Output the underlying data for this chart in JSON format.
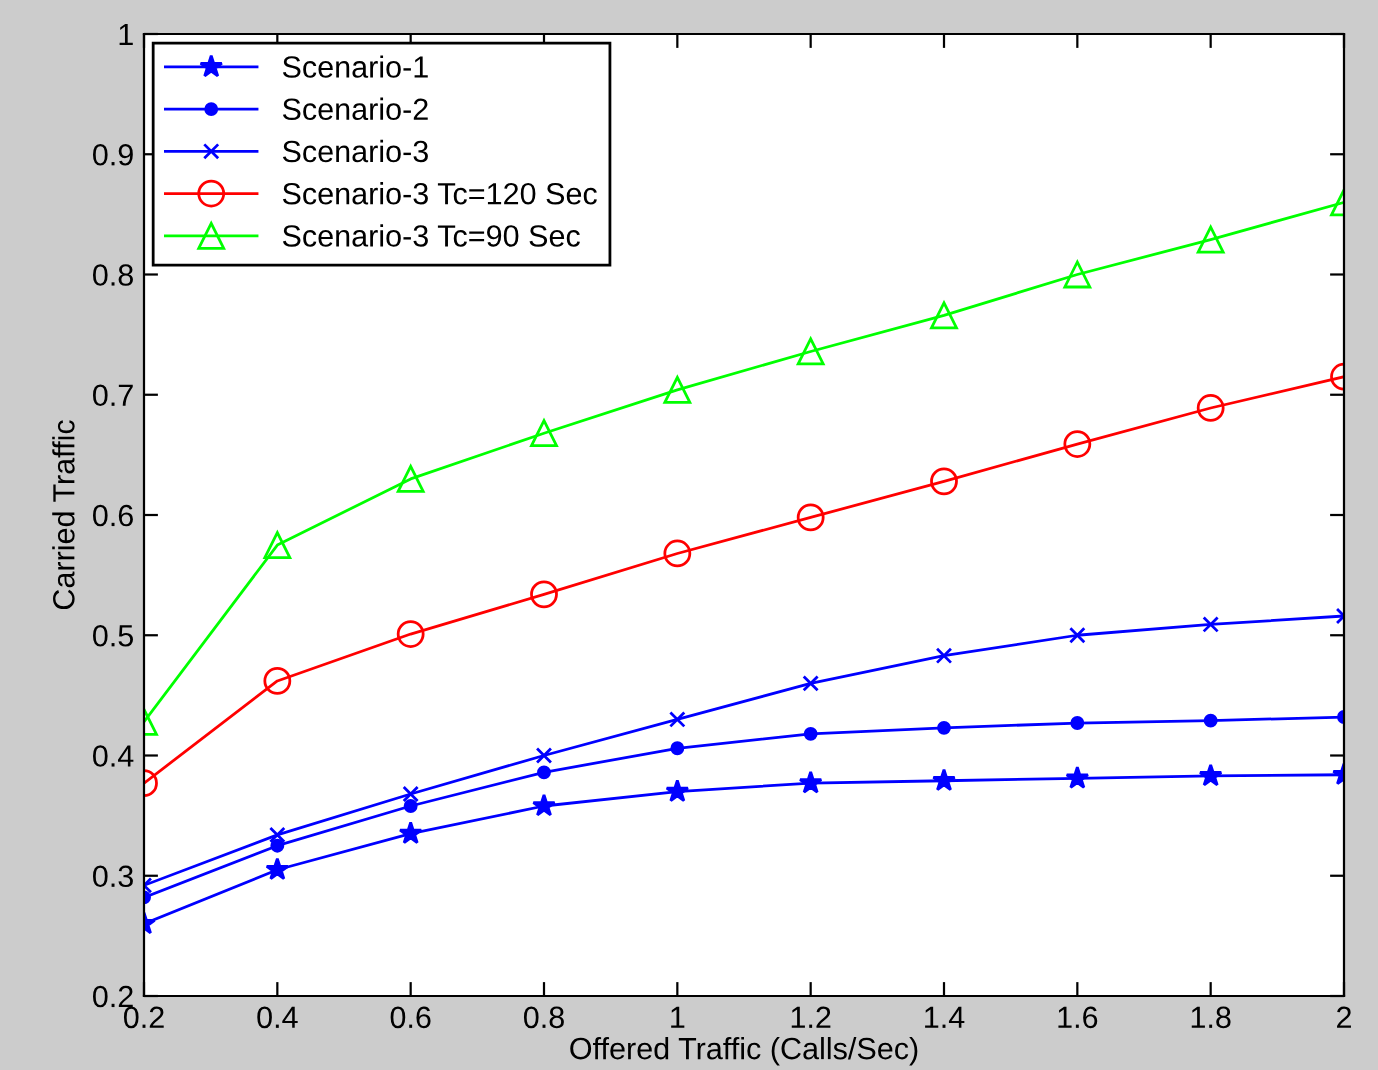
{
  "chart_data": {
    "type": "line",
    "xlabel": "Offered Traffic (Calls/Sec)",
    "ylabel": "Carried Traffic",
    "x": [
      0.2,
      0.4,
      0.6,
      0.8,
      1,
      1.2,
      1.4,
      1.6,
      1.8,
      2
    ],
    "series": [
      {
        "name": "Scenario-1",
        "color": "#0000ff",
        "marker": "star",
        "values": [
          0.26,
          0.305,
          0.335,
          0.358,
          0.37,
          0.377,
          0.379,
          0.381,
          0.383,
          0.384
        ]
      },
      {
        "name": "Scenario-2",
        "color": "#0000ff",
        "marker": "circle",
        "values": [
          0.282,
          0.325,
          0.358,
          0.386,
          0.406,
          0.418,
          0.423,
          0.427,
          0.429,
          0.432
        ]
      },
      {
        "name": "Scenario-3",
        "color": "#0000ff",
        "marker": "cross",
        "values": [
          0.292,
          0.334,
          0.368,
          0.4,
          0.43,
          0.46,
          0.483,
          0.5,
          0.509,
          0.516
        ]
      },
      {
        "name": "Scenario-3 Tc=120 Sec",
        "color": "#ff0000",
        "marker": "circle",
        "values": [
          0.377,
          0.462,
          0.501,
          0.534,
          0.568,
          0.598,
          0.628,
          0.659,
          0.689,
          0.715
        ]
      },
      {
        "name": "Scenario-3 Tc=90 Sec",
        "color": "#00ff00",
        "marker": "triangle",
        "values": [
          0.428,
          0.575,
          0.63,
          0.668,
          0.704,
          0.736,
          0.766,
          0.8,
          0.829,
          0.86
        ]
      }
    ],
    "xlim": [
      0.2,
      2
    ],
    "ylim": [
      0.2,
      1
    ],
    "xticks": [
      0.2,
      0.4,
      0.6,
      0.8,
      1,
      1.2,
      1.4,
      1.6,
      1.8,
      2
    ],
    "yticks": [
      0.2,
      0.3,
      0.4,
      0.5,
      0.6,
      0.7,
      0.8,
      0.9,
      1
    ],
    "grid": false,
    "legend": "top left",
    "line_style": "solid"
  }
}
